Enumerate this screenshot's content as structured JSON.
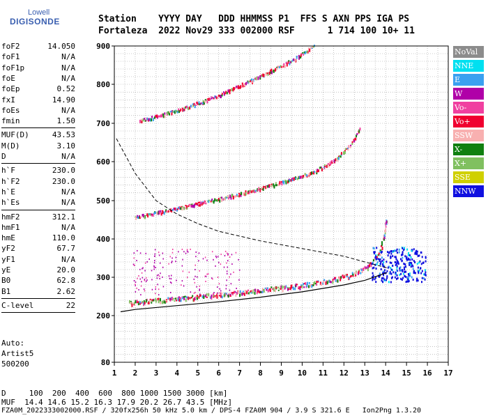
{
  "logo": {
    "line1": "Lowell",
    "line2": "DIGISONDE"
  },
  "header": {
    "line1": "Station    YYYY DAY   DDD HHMMSS P1  FFS S AXN PPS IGA PS",
    "line2": "Fortaleza  2022 Nov29 333 002000 RSF      1 714 100 10+ 11"
  },
  "params_group1": [
    {
      "k": "foF2",
      "v": "14.050"
    },
    {
      "k": "foF1",
      "v": "N/A"
    },
    {
      "k": "foF1p",
      "v": "N/A"
    },
    {
      "k": "foE",
      "v": "N/A"
    },
    {
      "k": "foEp",
      "v": "0.52"
    },
    {
      "k": "fxI",
      "v": "14.90"
    },
    {
      "k": "foEs",
      "v": "N/A"
    },
    {
      "k": "fmin",
      "v": "1.50"
    }
  ],
  "params_group2": [
    {
      "k": "MUF(D)",
      "v": "43.53"
    },
    {
      "k": "M(D)",
      "v": "3.10"
    },
    {
      "k": "D",
      "v": "N/A"
    }
  ],
  "params_group3": [
    {
      "k": "h`F",
      "v": "230.0"
    },
    {
      "k": "h`F2",
      "v": "230.0"
    },
    {
      "k": "h`E",
      "v": "N/A"
    },
    {
      "k": "h`Es",
      "v": "N/A"
    }
  ],
  "params_group4": [
    {
      "k": "hmF2",
      "v": "312.1"
    },
    {
      "k": "hmF1",
      "v": "N/A"
    },
    {
      "k": "hmE",
      "v": "110.0"
    },
    {
      "k": "yF2",
      "v": "67.7"
    },
    {
      "k": "yF1",
      "v": "N/A"
    },
    {
      "k": "yE",
      "v": "20.0"
    },
    {
      "k": "B0",
      "v": "62.8"
    },
    {
      "k": "B1",
      "v": "2.62"
    }
  ],
  "params_group5": [
    {
      "k": "C-level",
      "v": "22"
    }
  ],
  "auto": {
    "line1": "Auto:",
    "line2": "Artist5",
    "line3": "500200"
  },
  "legend": [
    {
      "label": "NoVal",
      "color": "#8c8c8c"
    },
    {
      "label": "NNE",
      "color": "#00e0f0"
    },
    {
      "label": "E",
      "color": "#3aa0f0"
    },
    {
      "label": "W",
      "color": "#b000a8"
    },
    {
      "label": "Vo-",
      "color": "#f040a0"
    },
    {
      "label": "Vo+",
      "color": "#f00030"
    },
    {
      "label": "SSW",
      "color": "#f8b0b0"
    },
    {
      "label": "X-",
      "color": "#108010"
    },
    {
      "label": "X+",
      "color": "#80c060"
    },
    {
      "label": "SSE",
      "color": "#d0d000"
    },
    {
      "label": "NNW",
      "color": "#1010e0"
    }
  ],
  "footer": {
    "line1": "D     100  200  400  600  800 1000 1500 3000 [km]",
    "line2": "MUF  14.4 14.6 15.2 16.3 17.9 20.2 26.7 43.5 [MHz]",
    "line3": "FZA0M_2022333002000.RSF / 320fx256h 50 kHz 5.0 km / DPS-4 FZA0M 904 / 3.9 S 321.6 E   Ion2Png 1.3.20"
  },
  "chart_data": {
    "type": "scatter",
    "xlim": [
      1,
      17
    ],
    "ylim": [
      80,
      900
    ],
    "x_ticks": [
      1,
      2,
      3,
      4,
      5,
      6,
      7,
      8,
      9,
      10,
      11,
      12,
      13,
      14,
      15,
      16,
      17
    ],
    "y_ticks": [
      80,
      200,
      300,
      400,
      500,
      600,
      700,
      800,
      900
    ],
    "y_scale": "log-like",
    "grid": true,
    "traces": [
      {
        "name": "O-trace F2",
        "color": "#f00030",
        "points": [
          [
            1.7,
            230
          ],
          [
            2.5,
            233
          ],
          [
            4,
            240
          ],
          [
            6,
            250
          ],
          [
            8,
            262
          ],
          [
            10,
            275
          ],
          [
            11.5,
            290
          ],
          [
            12.5,
            305
          ],
          [
            13.2,
            325
          ],
          [
            13.7,
            360
          ],
          [
            13.95,
            410
          ],
          [
            14.05,
            455
          ]
        ]
      },
      {
        "name": "2F echo",
        "color": "#f00030",
        "points": [
          [
            2.0,
            455
          ],
          [
            3.5,
            472
          ],
          [
            5,
            490
          ],
          [
            7,
            515
          ],
          [
            9,
            545
          ],
          [
            10.5,
            570
          ],
          [
            11.5,
            600
          ],
          [
            12.3,
            640
          ],
          [
            12.8,
            690
          ]
        ]
      },
      {
        "name": "3F echo",
        "color": "#f00030",
        "points": [
          [
            2.2,
            705
          ],
          [
            4,
            730
          ],
          [
            6,
            770
          ],
          [
            8,
            820
          ],
          [
            9.5,
            860
          ],
          [
            10.6,
            900
          ]
        ]
      }
    ],
    "profile_solid": [
      [
        1.3,
        210
      ],
      [
        2,
        216
      ],
      [
        4,
        226
      ],
      [
        6,
        236
      ],
      [
        8,
        248
      ],
      [
        10,
        262
      ],
      [
        12,
        280
      ],
      [
        13,
        292
      ],
      [
        14.05,
        312
      ]
    ],
    "profile_dashed": [
      [
        1.1,
        660
      ],
      [
        2,
        570
      ],
      [
        3,
        500
      ],
      [
        4,
        465
      ],
      [
        5,
        440
      ],
      [
        6,
        420
      ],
      [
        8,
        395
      ],
      [
        10,
        375
      ],
      [
        12,
        355
      ],
      [
        13,
        340
      ],
      [
        14.05,
        325
      ]
    ]
  }
}
